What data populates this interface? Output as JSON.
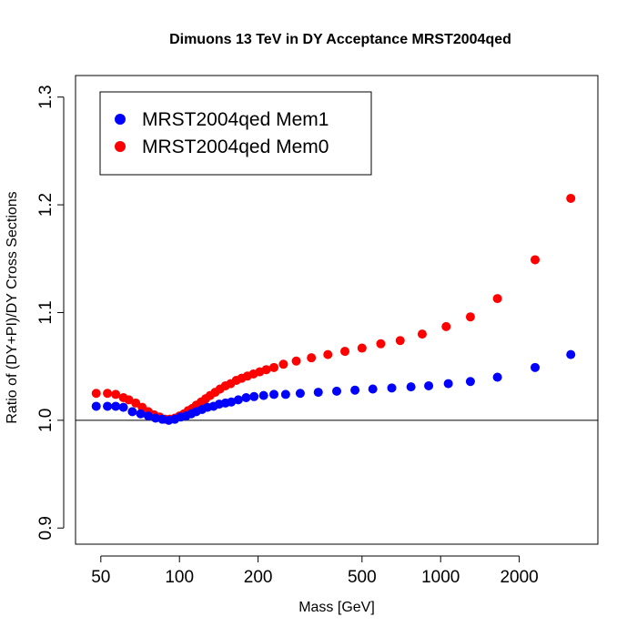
{
  "colors": {
    "series_blue": "#0000ff",
    "series_red": "#ff0000",
    "axis": "#000000",
    "background": "#ffffff"
  },
  "chart_data": {
    "type": "scatter",
    "title": "Dimuons 13 TeV in DY Acceptance MRST2004qed",
    "xlabel": "Mass [GeV]",
    "ylabel": "Ratio of (DY+PI)/DY Cross Sections",
    "xscale": "log",
    "xlim": [
      40,
      4000
    ],
    "ylim": [
      0.885,
      1.32
    ],
    "x_ticks": [
      50,
      100,
      200,
      500,
      1000,
      2000
    ],
    "x_tick_labels": [
      "50",
      "100",
      "200",
      "500",
      "1000",
      "2000"
    ],
    "y_ticks": [
      0.9,
      1.0,
      1.1,
      1.2,
      1.3
    ],
    "y_tick_labels": [
      "0.9",
      "1.0",
      "1.1",
      "1.2",
      "1.3"
    ],
    "reference_line": 1.0,
    "legend": {
      "position": "top-left",
      "entries": [
        "MRST2004qed Mem1",
        "MRST2004qed Mem0"
      ]
    },
    "series": [
      {
        "name": "MRST2004qed Mem1",
        "color": "#0000ff",
        "x": [
          48,
          53,
          57,
          61,
          66,
          71,
          76,
          81,
          86,
          91,
          96,
          101,
          106,
          111,
          116,
          122,
          128,
          135,
          142,
          150,
          158,
          168,
          180,
          193,
          210,
          230,
          255,
          290,
          340,
          400,
          470,
          550,
          650,
          770,
          900,
          1070,
          1300,
          1650,
          2300,
          3150
        ],
        "y": [
          1.013,
          1.013,
          1.013,
          1.012,
          1.008,
          1.006,
          1.004,
          1.002,
          1.001,
          1.0,
          1.001,
          1.003,
          1.004,
          1.006,
          1.008,
          1.01,
          1.012,
          1.013,
          1.015,
          1.016,
          1.017,
          1.019,
          1.021,
          1.022,
          1.023,
          1.024,
          1.024,
          1.025,
          1.026,
          1.027,
          1.028,
          1.029,
          1.03,
          1.031,
          1.032,
          1.034,
          1.036,
          1.04,
          1.049,
          1.061
        ]
      },
      {
        "name": "MRST2004qed Mem0",
        "color": "#ff0000",
        "x": [
          48,
          53,
          57,
          61,
          64,
          68,
          72,
          76,
          80,
          84,
          88,
          92,
          96,
          100,
          104,
          108,
          112,
          116,
          121,
          126,
          131,
          137,
          143,
          150,
          157,
          165,
          173,
          182,
          192,
          203,
          215,
          230,
          250,
          280,
          320,
          370,
          430,
          500,
          590,
          700,
          850,
          1050,
          1300,
          1650,
          2300,
          3150
        ],
        "y": [
          1.025,
          1.025,
          1.024,
          1.021,
          1.019,
          1.016,
          1.012,
          1.008,
          1.005,
          1.003,
          1.001,
          1.001,
          1.002,
          1.004,
          1.006,
          1.009,
          1.011,
          1.014,
          1.017,
          1.02,
          1.023,
          1.026,
          1.029,
          1.032,
          1.034,
          1.037,
          1.039,
          1.041,
          1.043,
          1.045,
          1.047,
          1.049,
          1.052,
          1.055,
          1.058,
          1.061,
          1.064,
          1.067,
          1.071,
          1.074,
          1.08,
          1.087,
          1.096,
          1.113,
          1.149,
          1.206
        ]
      }
    ]
  }
}
